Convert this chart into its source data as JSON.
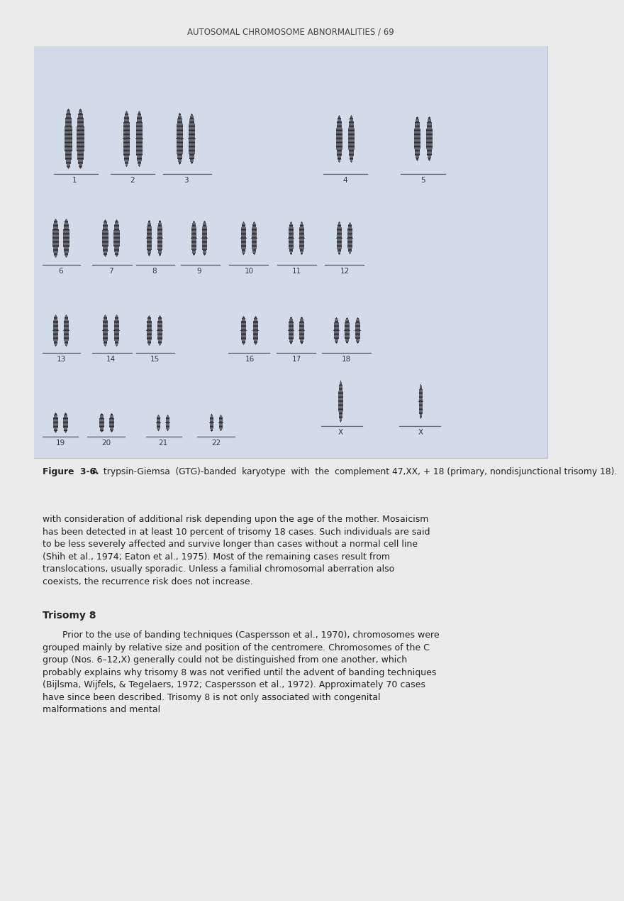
{
  "page_header": "AUTOSOMAL CHROMOSOME ABNORMALITIES / 69",
  "figure_caption_bold": "Figure  3-6.",
  "figure_caption_rest": "  A  trypsin-Giemsa  (GTG)-banded  karyotype  with  the  complement 47,XX, + 18 (primary, nondisjunctional trisomy 18).",
  "paragraph1": "with consideration of additional risk depending upon the age of the mother. Mosaicism has been detected in at least 10 percent of trisomy 18 cases. Such individuals are said to be less severely affected and survive longer than cases without a normal cell line (Shih et al., 1974; Eaton et al., 1975). Most of the remaining cases result from translocations, usually sporadic. Unless a familial chromosomal aberration also coexists, the recurrence risk does not increase.",
  "section_header": "Trisomy 8",
  "paragraph2": "Prior to the use of banding techniques (Caspersson et al., 1970), chromosomes were grouped mainly by relative size and position of the centromere. Chromosomes of the C group (Nos. 6–12,X) generally could not be distinguished from one another, which probably explains why trisomy 8 was not verified until the advent of banding techniques (Bijlsma, Wijfels, & Tegelaers, 1972; Caspersson et al., 1972). Approximately 70 cases have since been described. Trisomy 8 is not only associated with congenital malformations and mental",
  "bg_color": "#ebebeb",
  "text_color": "#222222",
  "header_color": "#444444",
  "karyotype_bg": "#d4dce8",
  "page_width": 8.0,
  "page_height": 12.49
}
